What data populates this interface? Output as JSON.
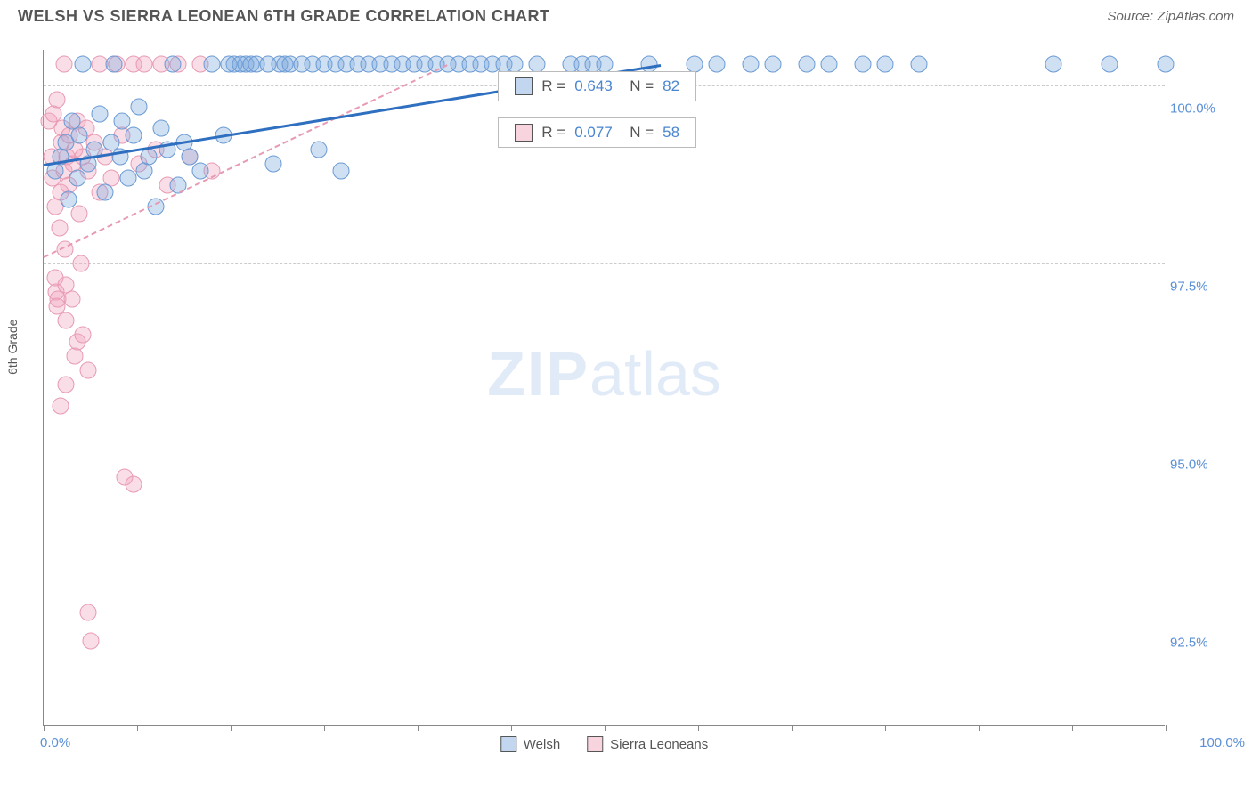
{
  "header": {
    "title": "WELSH VS SIERRA LEONEAN 6TH GRADE CORRELATION CHART",
    "source": "Source: ZipAtlas.com"
  },
  "chart": {
    "type": "scatter",
    "ylabel": "6th Grade",
    "background_color": "#ffffff",
    "grid_color": "#cccccc",
    "axis_color": "#888888",
    "tick_label_color": "#5a8fd6",
    "xlim": [
      0,
      100
    ],
    "ylim": [
      91.0,
      100.5
    ],
    "xticks_pct": [
      0,
      8.3,
      16.7,
      25,
      33.3,
      41.7,
      50,
      58.3,
      66.7,
      75,
      83.3,
      91.7,
      100
    ],
    "yticks": [
      {
        "v": 100.0,
        "label": "100.0%"
      },
      {
        "v": 97.5,
        "label": "97.5%"
      },
      {
        "v": 95.0,
        "label": "95.0%"
      },
      {
        "v": 92.5,
        "label": "92.5%"
      }
    ],
    "x_min_label": "0.0%",
    "x_max_label": "100.0%",
    "watermark": {
      "zip": "ZIP",
      "atlas": "atlas"
    },
    "series": {
      "welsh": {
        "label": "Welsh",
        "color_fill": "rgba(120,165,220,0.35)",
        "color_stroke": "#6a9ad4",
        "trend_color": "#2f6fc0",
        "trend_style": "solid",
        "trend": {
          "x1": 0,
          "y1": 98.9,
          "x2": 55,
          "y2": 100.3
        },
        "R": "0.643",
        "N": "82",
        "points": [
          [
            1.0,
            98.8
          ],
          [
            1.5,
            99.0
          ],
          [
            2.0,
            99.2
          ],
          [
            2.2,
            98.4
          ],
          [
            2.5,
            99.5
          ],
          [
            3.0,
            98.7
          ],
          [
            3.2,
            99.3
          ],
          [
            3.5,
            100.3
          ],
          [
            4.0,
            98.9
          ],
          [
            4.5,
            99.1
          ],
          [
            5.0,
            99.6
          ],
          [
            5.5,
            98.5
          ],
          [
            6.0,
            99.2
          ],
          [
            6.3,
            100.3
          ],
          [
            6.8,
            99.0
          ],
          [
            7.0,
            99.5
          ],
          [
            7.5,
            98.7
          ],
          [
            8.0,
            99.3
          ],
          [
            8.5,
            99.7
          ],
          [
            9.0,
            98.8
          ],
          [
            9.4,
            99.0
          ],
          [
            10.0,
            98.3
          ],
          [
            10.5,
            99.4
          ],
          [
            11.0,
            99.1
          ],
          [
            11.5,
            100.3
          ],
          [
            12.0,
            98.6
          ],
          [
            12.5,
            99.2
          ],
          [
            13.0,
            99.0
          ],
          [
            14.0,
            98.8
          ],
          [
            15.0,
            100.3
          ],
          [
            16.0,
            99.3
          ],
          [
            16.5,
            100.3
          ],
          [
            17.0,
            100.3
          ],
          [
            17.5,
            100.3
          ],
          [
            18.0,
            100.3
          ],
          [
            18.5,
            100.3
          ],
          [
            19.0,
            100.3
          ],
          [
            20.0,
            100.3
          ],
          [
            20.5,
            98.9
          ],
          [
            21.0,
            100.3
          ],
          [
            21.5,
            100.3
          ],
          [
            22.0,
            100.3
          ],
          [
            23.0,
            100.3
          ],
          [
            24.0,
            100.3
          ],
          [
            24.5,
            99.1
          ],
          [
            25.0,
            100.3
          ],
          [
            26.0,
            100.3
          ],
          [
            26.5,
            98.8
          ],
          [
            27.0,
            100.3
          ],
          [
            28.0,
            100.3
          ],
          [
            29.0,
            100.3
          ],
          [
            30.0,
            100.3
          ],
          [
            31.0,
            100.3
          ],
          [
            32.0,
            100.3
          ],
          [
            33.0,
            100.3
          ],
          [
            34.0,
            100.3
          ],
          [
            35.0,
            100.3
          ],
          [
            36.0,
            100.3
          ],
          [
            37.0,
            100.3
          ],
          [
            38.0,
            100.3
          ],
          [
            39.0,
            100.3
          ],
          [
            40.0,
            100.3
          ],
          [
            41.0,
            100.3
          ],
          [
            42.0,
            100.3
          ],
          [
            44.0,
            100.3
          ],
          [
            47.0,
            100.3
          ],
          [
            48.0,
            100.3
          ],
          [
            49.0,
            100.3
          ],
          [
            50.0,
            100.3
          ],
          [
            54.0,
            100.3
          ],
          [
            58.0,
            100.3
          ],
          [
            60.0,
            100.3
          ],
          [
            63.0,
            100.3
          ],
          [
            65.0,
            100.3
          ],
          [
            68.0,
            100.3
          ],
          [
            70.0,
            100.3
          ],
          [
            73.0,
            100.3
          ],
          [
            75.0,
            100.3
          ],
          [
            78.0,
            100.3
          ],
          [
            90.0,
            100.3
          ],
          [
            95.0,
            100.3
          ],
          [
            100.0,
            100.3
          ]
        ]
      },
      "sierra": {
        "label": "Sierra Leoneans",
        "color_fill": "rgba(240,160,185,0.35)",
        "color_stroke": "#e79ab3",
        "trend_color": "#e79ab3",
        "trend_style": "dashed",
        "trend": {
          "x1": 0,
          "y1": 97.6,
          "x2": 36,
          "y2": 100.3
        },
        "R": "0.077",
        "N": "58",
        "points": [
          [
            0.5,
            99.5
          ],
          [
            0.7,
            99.0
          ],
          [
            0.8,
            98.7
          ],
          [
            1.0,
            98.3
          ],
          [
            1.0,
            97.3
          ],
          [
            1.1,
            97.1
          ],
          [
            1.2,
            96.9
          ],
          [
            1.3,
            97.0
          ],
          [
            1.4,
            98.0
          ],
          [
            1.5,
            98.5
          ],
          [
            1.6,
            99.2
          ],
          [
            1.7,
            99.4
          ],
          [
            1.8,
            98.8
          ],
          [
            1.9,
            97.7
          ],
          [
            2.0,
            97.2
          ],
          [
            2.0,
            96.7
          ],
          [
            2.1,
            99.0
          ],
          [
            2.2,
            98.6
          ],
          [
            2.3,
            99.3
          ],
          [
            2.5,
            97.0
          ],
          [
            2.6,
            98.9
          ],
          [
            2.8,
            99.1
          ],
          [
            3.0,
            96.4
          ],
          [
            3.0,
            99.5
          ],
          [
            3.2,
            98.2
          ],
          [
            3.5,
            99.0
          ],
          [
            3.5,
            96.5
          ],
          [
            3.8,
            99.4
          ],
          [
            4.0,
            98.8
          ],
          [
            4.0,
            92.6
          ],
          [
            4.2,
            92.2
          ],
          [
            4.5,
            99.2
          ],
          [
            5.0,
            98.5
          ],
          [
            5.0,
            100.3
          ],
          [
            5.5,
            99.0
          ],
          [
            6.0,
            98.7
          ],
          [
            6.5,
            100.3
          ],
          [
            7.0,
            99.3
          ],
          [
            7.2,
            94.5
          ],
          [
            8.0,
            100.3
          ],
          [
            8.0,
            94.4
          ],
          [
            8.5,
            98.9
          ],
          [
            9.0,
            100.3
          ],
          [
            10.0,
            99.1
          ],
          [
            10.5,
            100.3
          ],
          [
            11.0,
            98.6
          ],
          [
            12.0,
            100.3
          ],
          [
            13.0,
            99.0
          ],
          [
            14.0,
            100.3
          ],
          [
            15.0,
            98.8
          ],
          [
            4.0,
            96.0
          ],
          [
            2.0,
            95.8
          ],
          [
            1.5,
            95.5
          ],
          [
            2.8,
            96.2
          ],
          [
            3.3,
            97.5
          ],
          [
            1.2,
            99.8
          ],
          [
            0.9,
            99.6
          ],
          [
            1.8,
            100.3
          ]
        ]
      }
    },
    "stats_boxes": [
      {
        "series": "welsh",
        "left_pct": 40.5,
        "top_y": 100.2
      },
      {
        "series": "sierra",
        "left_pct": 40.5,
        "top_y": 99.55
      }
    ]
  },
  "legend": {
    "items": [
      {
        "key": "welsh",
        "label": "Welsh"
      },
      {
        "key": "sierra",
        "label": "Sierra Leoneans"
      }
    ]
  }
}
